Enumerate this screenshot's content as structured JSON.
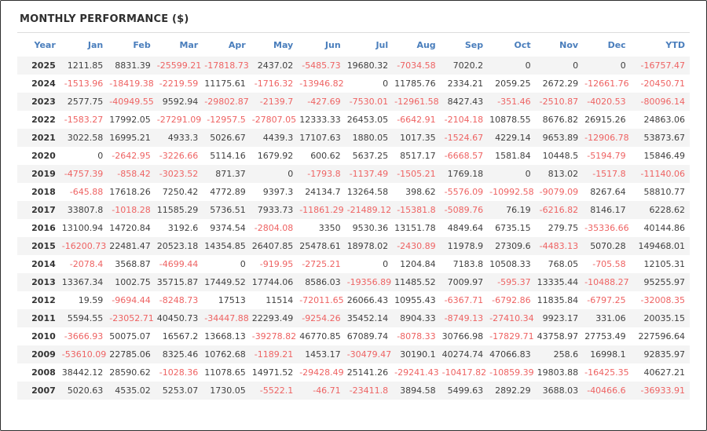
{
  "title": "MONTHLY PERFORMANCE ($)",
  "colors": {
    "header_text": "#4a7ebc",
    "negative_value": "#ee6363",
    "positive_value": "#3f3f3f",
    "alt_row_background": "#f4f4f4",
    "title_text": "#2f2f2f"
  },
  "table": {
    "columns": [
      "Year",
      "Jan",
      "Feb",
      "Mar",
      "Apr",
      "May",
      "Jun",
      "Jul",
      "Aug",
      "Sep",
      "Oct",
      "Nov",
      "Dec",
      "YTD"
    ],
    "rows": [
      {
        "year": "2025",
        "values": [
          "1211.85",
          "8831.39",
          "-25599.21",
          "-17818.73",
          "2437.02",
          "-5485.73",
          "19680.32",
          "-7034.58",
          "7020.2",
          "0",
          "0",
          "0",
          "-16757.47"
        ]
      },
      {
        "year": "2024",
        "values": [
          "-1513.96",
          "-18419.38",
          "-2219.59",
          "11175.61",
          "-1716.32",
          "-13946.82",
          "0",
          "11785.76",
          "2334.21",
          "2059.25",
          "2672.29",
          "-12661.76",
          "-20450.71"
        ]
      },
      {
        "year": "2023",
        "values": [
          "2577.75",
          "-40949.55",
          "9592.94",
          "-29802.87",
          "-2139.7",
          "-427.69",
          "-7530.01",
          "-12961.58",
          "8427.43",
          "-351.46",
          "-2510.87",
          "-4020.53",
          "-80096.14"
        ]
      },
      {
        "year": "2022",
        "values": [
          "-1583.27",
          "17992.05",
          "-27291.09",
          "-12957.5",
          "-27807.05",
          "12333.33",
          "26453.05",
          "-6642.91",
          "-2104.18",
          "10878.55",
          "8676.82",
          "26915.26",
          "24863.06"
        ]
      },
      {
        "year": "2021",
        "values": [
          "3022.58",
          "16995.21",
          "4933.3",
          "5026.67",
          "4439.3",
          "17107.63",
          "1880.05",
          "1017.35",
          "-1524.67",
          "4229.14",
          "9653.89",
          "-12906.78",
          "53873.67"
        ]
      },
      {
        "year": "2020",
        "values": [
          "0",
          "-2642.95",
          "-3226.66",
          "5114.16",
          "1679.92",
          "600.62",
          "5637.25",
          "8517.17",
          "-6668.57",
          "1581.84",
          "10448.5",
          "-5194.79",
          "15846.49"
        ]
      },
      {
        "year": "2019",
        "values": [
          "-4757.39",
          "-858.42",
          "-3023.52",
          "871.37",
          "0",
          "-1793.8",
          "-1137.49",
          "-1505.21",
          "1769.18",
          "0",
          "813.02",
          "-1517.8",
          "-11140.06"
        ]
      },
      {
        "year": "2018",
        "values": [
          "-645.88",
          "17618.26",
          "7250.42",
          "4772.89",
          "9397.3",
          "24134.7",
          "13264.58",
          "398.62",
          "-5576.09",
          "-10992.58",
          "-9079.09",
          "8267.64",
          "58810.77"
        ]
      },
      {
        "year": "2017",
        "values": [
          "33807.8",
          "-1018.28",
          "11585.29",
          "5736.51",
          "7933.73",
          "-11861.29",
          "-21489.12",
          "-15381.8",
          "-5089.76",
          "76.19",
          "-6216.82",
          "8146.17",
          "6228.62"
        ]
      },
      {
        "year": "2016",
        "values": [
          "13100.94",
          "14720.84",
          "3192.6",
          "9374.54",
          "-2804.08",
          "3350",
          "9530.36",
          "13151.78",
          "4849.64",
          "6735.15",
          "279.75",
          "-35336.66",
          "40144.86"
        ]
      },
      {
        "year": "2015",
        "values": [
          "-16200.73",
          "22481.47",
          "20523.18",
          "14354.85",
          "26407.85",
          "25478.61",
          "18978.02",
          "-2430.89",
          "11978.9",
          "27309.6",
          "-4483.13",
          "5070.28",
          "149468.01"
        ]
      },
      {
        "year": "2014",
        "values": [
          "-2078.4",
          "3568.87",
          "-4699.44",
          "0",
          "-919.95",
          "-2725.21",
          "0",
          "1204.84",
          "7183.8",
          "10508.33",
          "768.05",
          "-705.58",
          "12105.31"
        ]
      },
      {
        "year": "2013",
        "values": [
          "13367.34",
          "1002.75",
          "35715.87",
          "17449.52",
          "17744.06",
          "8586.03",
          "-19356.89",
          "11485.52",
          "7009.97",
          "-595.37",
          "13335.44",
          "-10488.27",
          "95255.97"
        ]
      },
      {
        "year": "2012",
        "values": [
          "19.59",
          "-9694.44",
          "-8248.73",
          "17513",
          "11514",
          "-72011.65",
          "26066.43",
          "10955.43",
          "-6367.71",
          "-6792.86",
          "11835.84",
          "-6797.25",
          "-32008.35"
        ]
      },
      {
        "year": "2011",
        "values": [
          "5594.55",
          "-23052.71",
          "40450.73",
          "-34447.88",
          "22293.49",
          "-9254.26",
          "35452.14",
          "8904.33",
          "-8749.13",
          "-27410.34",
          "9923.17",
          "331.06",
          "20035.15"
        ]
      },
      {
        "year": "2010",
        "values": [
          "-3666.93",
          "50075.07",
          "16567.2",
          "13668.13",
          "-39278.82",
          "46770.85",
          "67089.74",
          "-8078.33",
          "30766.98",
          "-17829.71",
          "43758.97",
          "27753.49",
          "227596.64"
        ]
      },
      {
        "year": "2009",
        "values": [
          "-53610.09",
          "22785.06",
          "8325.46",
          "10762.68",
          "-1189.21",
          "1453.17",
          "-30479.47",
          "30190.1",
          "40274.74",
          "47066.83",
          "258.6",
          "16998.1",
          "92835.97"
        ]
      },
      {
        "year": "2008",
        "values": [
          "38442.12",
          "28590.62",
          "-1028.36",
          "11078.65",
          "14971.52",
          "-29428.49",
          "25141.26",
          "-29241.43",
          "-10417.82",
          "-10859.39",
          "19803.88",
          "-16425.35",
          "40627.21"
        ]
      },
      {
        "year": "2007",
        "values": [
          "5020.63",
          "4535.02",
          "5253.07",
          "1730.05",
          "-5522.1",
          "-46.71",
          "-23411.8",
          "3894.58",
          "5499.63",
          "2892.29",
          "3688.03",
          "-40466.6",
          "-36933.91"
        ]
      }
    ]
  }
}
